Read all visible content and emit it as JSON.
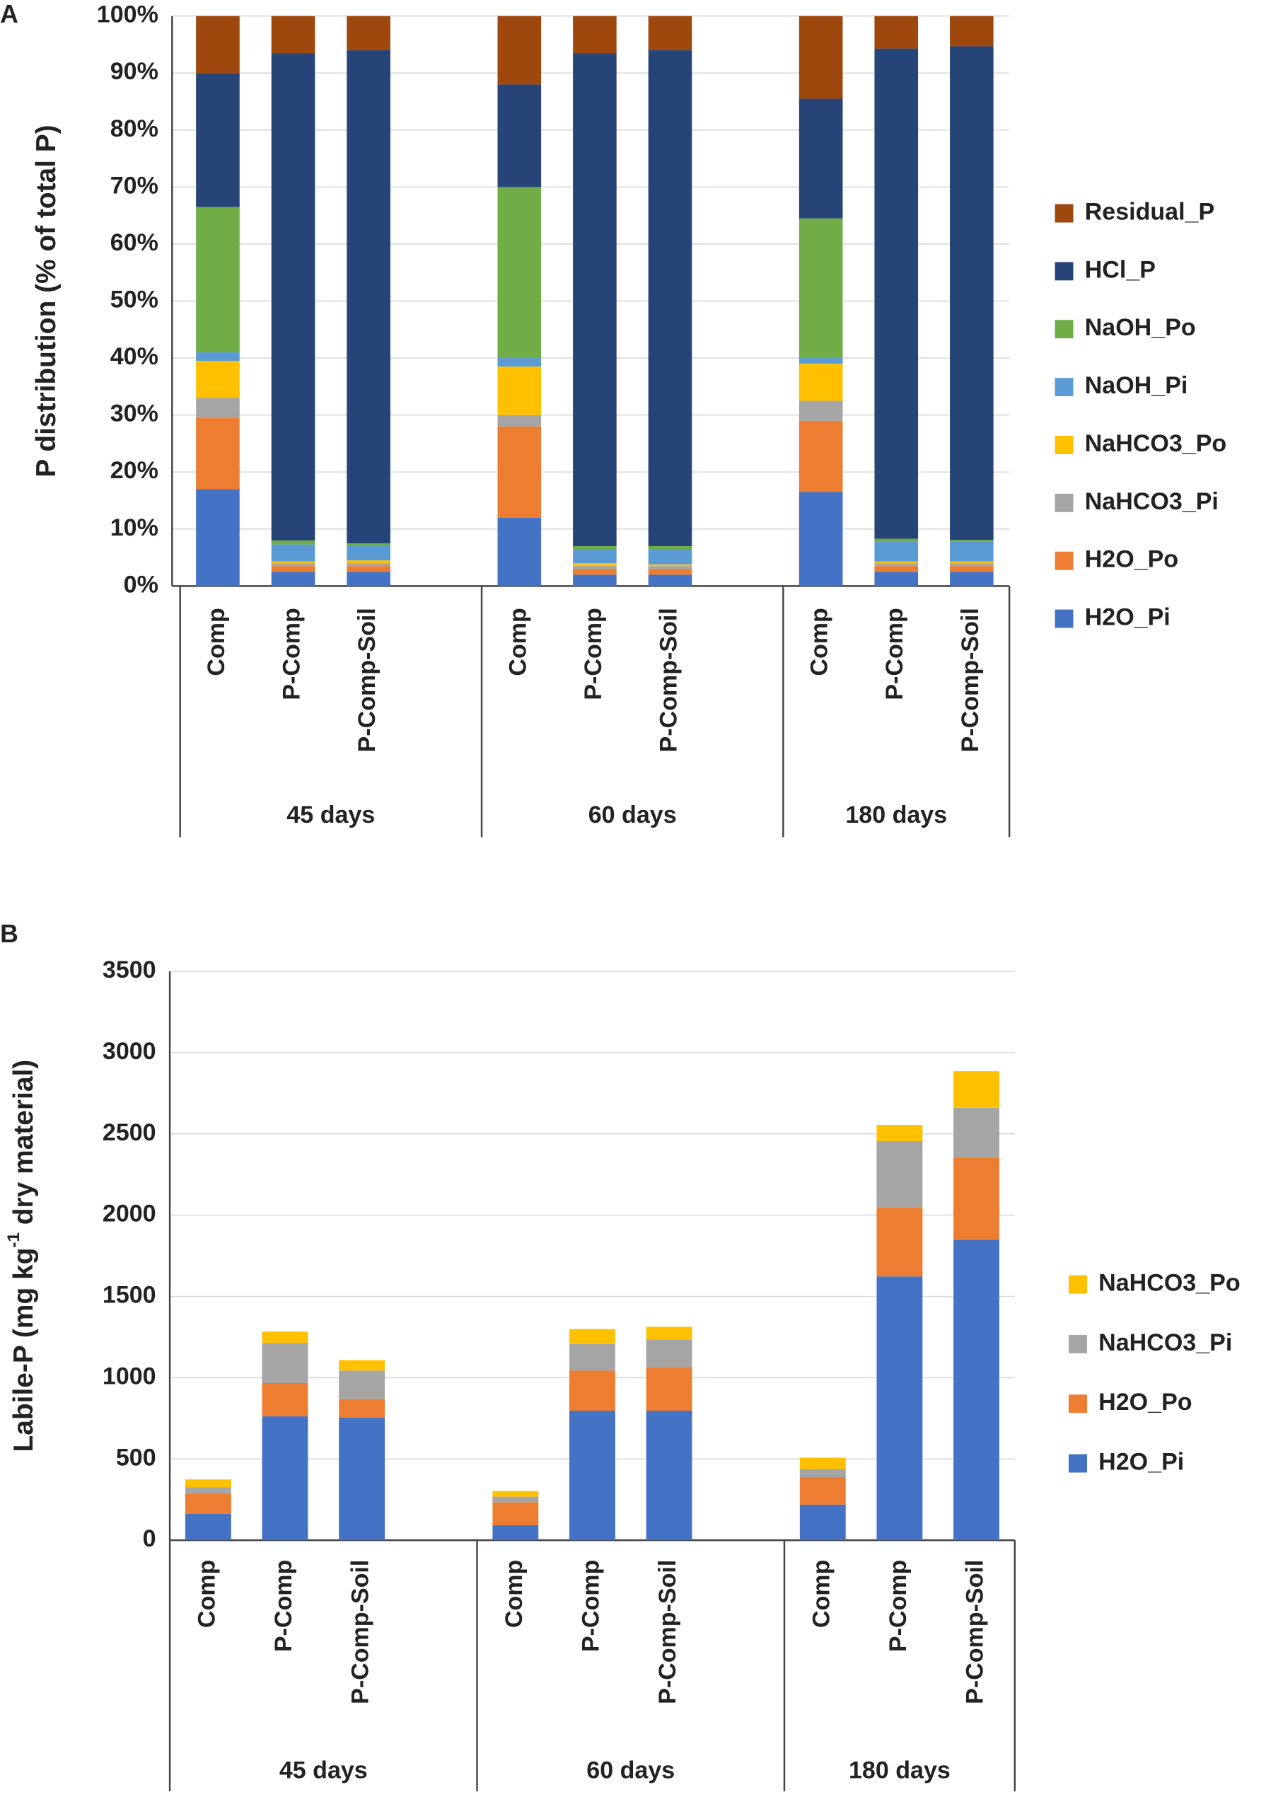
{
  "chart_data": [
    {
      "type": "bar",
      "stacked": true,
      "panel_label": "A",
      "ylabel": [
        "P distribution (% of total P)"
      ],
      "groups": [
        "45 days",
        "60 days",
        "180 days"
      ],
      "categories": [
        "Comp",
        "P-Comp",
        "P-Comp-Soil",
        "Comp",
        "P-Comp",
        "P-Comp-Soil",
        "Comp",
        "P-Comp",
        "P-Comp-Soil"
      ],
      "ylim": [
        0,
        100
      ],
      "yticks": [
        {
          "value": 0,
          "label": "0%"
        },
        {
          "value": 10,
          "label": "10%"
        },
        {
          "value": 20,
          "label": "20%"
        },
        {
          "value": 30,
          "label": "30%"
        },
        {
          "value": 40,
          "label": "40%"
        },
        {
          "value": 50,
          "label": "50%"
        },
        {
          "value": 60,
          "label": "60%"
        },
        {
          "value": 70,
          "label": "70%"
        },
        {
          "value": 80,
          "label": "80%"
        },
        {
          "value": 90,
          "label": "90%"
        },
        {
          "value": 100,
          "label": "100%"
        }
      ],
      "grid": true,
      "legend": "right",
      "series": [
        {
          "name": "H2O_Pi",
          "color": "#4472c4",
          "values": [
            17,
            2.5,
            2.5,
            12,
            2,
            2,
            16.5,
            2.5,
            2.5
          ]
        },
        {
          "name": "H2O_Po",
          "color": "#ed7d31",
          "values": [
            12.5,
            1,
            1,
            16,
            1,
            1,
            12.5,
            1,
            1
          ]
        },
        {
          "name": "NaHCO3_Pi",
          "color": "#a5a5a5",
          "values": [
            3.5,
            0.5,
            0.5,
            2,
            0.5,
            0.5,
            3.5,
            0.5,
            0.5
          ]
        },
        {
          "name": "NaHCO3_Po",
          "color": "#ffc000",
          "values": [
            6.5,
            0.3,
            0.5,
            8.5,
            0.5,
            0.3,
            6.5,
            0.3,
            0.3
          ]
        },
        {
          "name": "NaOH_Pi",
          "color": "#5b9bd5",
          "values": [
            1.5,
            3,
            2.5,
            1.5,
            2.5,
            2.7,
            1,
            3.5,
            3.5
          ]
        },
        {
          "name": "NaOH_Po",
          "color": "#70ad47",
          "values": [
            25.5,
            0.7,
            0.5,
            30,
            0.5,
            0.5,
            24.5,
            0.5,
            0.3
          ]
        },
        {
          "name": "HCl_P",
          "color": "#264478",
          "values": [
            23.5,
            85.5,
            86.5,
            18,
            86.5,
            87,
            21,
            86,
            86.6
          ]
        },
        {
          "name": "Residual_P",
          "color": "#9e480e",
          "values": [
            10,
            6.5,
            6,
            12,
            6.5,
            6,
            14.5,
            5.7,
            5.3
          ]
        }
      ]
    },
    {
      "type": "bar",
      "stacked": true,
      "panel_label": "B",
      "ylabel": [
        "Labile-P (mg kg",
        "-1",
        " dry material)"
      ],
      "groups": [
        "45 days",
        "60 days",
        "180 days"
      ],
      "categories": [
        "Comp",
        "P-Comp",
        "P-Comp-Soil",
        "Comp",
        "P-Comp",
        "P-Comp-Soil",
        "Comp",
        "P-Comp",
        "P-Comp-Soil"
      ],
      "ylim": [
        0,
        3500
      ],
      "yticks": [
        0,
        500,
        1000,
        1500,
        2000,
        2500,
        3000,
        3500
      ],
      "grid": true,
      "legend": "right",
      "series": [
        {
          "name": "H2O_Pi",
          "color": "#4472c4",
          "values": [
            162,
            762,
            755,
            92,
            797,
            797,
            219,
            1623,
            1849
          ]
        },
        {
          "name": "H2O_Po",
          "color": "#ed7d31",
          "values": [
            127,
            205,
            113,
            141,
            247,
            269,
            169,
            424,
            508
          ]
        },
        {
          "name": "NaHCO3_Pi",
          "color": "#a5a5a5",
          "values": [
            36,
            247,
            176,
            35,
            163,
            169,
            50,
            409,
            304
          ]
        },
        {
          "name": "NaHCO3_Po",
          "color": "#ffc000",
          "values": [
            49,
            70,
            64,
            35,
            92,
            78,
            70,
            99,
            225
          ]
        }
      ]
    }
  ]
}
